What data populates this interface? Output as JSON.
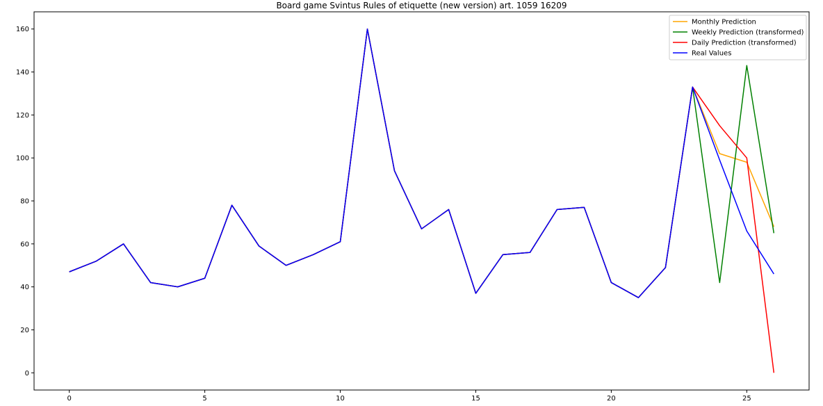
{
  "chart_data": {
    "type": "line",
    "title": "Board game Svintus Rules of etiquette (new version) art. 1059 16209",
    "xlabel": "",
    "ylabel": "",
    "xlim": [
      -1.3,
      27.3
    ],
    "ylim": [
      -8,
      168
    ],
    "x_ticks": [
      0,
      5,
      10,
      15,
      20,
      25
    ],
    "y_ticks": [
      0,
      20,
      40,
      60,
      80,
      100,
      120,
      140,
      160
    ],
    "grid": false,
    "legend_position": "top-right",
    "series": [
      {
        "name": "Monthly Prediction",
        "color": "#ffa500",
        "x": [
          0,
          1,
          2,
          3,
          4,
          5,
          6,
          7,
          8,
          9,
          10,
          11,
          12,
          13,
          14,
          15,
          16,
          17,
          18,
          19,
          20,
          21,
          22,
          23,
          24,
          25,
          26
        ],
        "values": [
          47,
          52,
          60,
          42,
          40,
          44,
          78,
          59,
          50,
          55,
          61,
          160,
          94,
          67,
          76,
          37,
          55,
          56,
          76,
          77,
          42,
          35,
          49,
          133,
          102,
          98,
          68
        ]
      },
      {
        "name": "Weekly Prediction (transformed)",
        "color": "#008000",
        "x": [
          0,
          1,
          2,
          3,
          4,
          5,
          6,
          7,
          8,
          9,
          10,
          11,
          12,
          13,
          14,
          15,
          16,
          17,
          18,
          19,
          20,
          21,
          22,
          23,
          24,
          25,
          26
        ],
        "values": [
          47,
          52,
          60,
          42,
          40,
          44,
          78,
          59,
          50,
          55,
          61,
          160,
          94,
          67,
          76,
          37,
          55,
          56,
          76,
          77,
          42,
          35,
          49,
          133,
          42,
          143,
          65
        ]
      },
      {
        "name": "Daily Prediction (transformed)",
        "color": "#ff0000",
        "x": [
          0,
          1,
          2,
          3,
          4,
          5,
          6,
          7,
          8,
          9,
          10,
          11,
          12,
          13,
          14,
          15,
          16,
          17,
          18,
          19,
          20,
          21,
          22,
          23,
          24,
          25,
          26
        ],
        "values": [
          47,
          52,
          60,
          42,
          40,
          44,
          78,
          59,
          50,
          55,
          61,
          160,
          94,
          67,
          76,
          37,
          55,
          56,
          76,
          77,
          42,
          35,
          49,
          133,
          115,
          100,
          0
        ]
      },
      {
        "name": "Real Values",
        "color": "#0000ff",
        "x": [
          0,
          1,
          2,
          3,
          4,
          5,
          6,
          7,
          8,
          9,
          10,
          11,
          12,
          13,
          14,
          15,
          16,
          17,
          18,
          19,
          20,
          21,
          22,
          23,
          24,
          25,
          26
        ],
        "values": [
          47,
          52,
          60,
          42,
          40,
          44,
          78,
          59,
          50,
          55,
          61,
          160,
          94,
          67,
          76,
          37,
          55,
          56,
          76,
          77,
          42,
          35,
          49,
          133,
          99,
          66,
          46
        ]
      }
    ]
  }
}
